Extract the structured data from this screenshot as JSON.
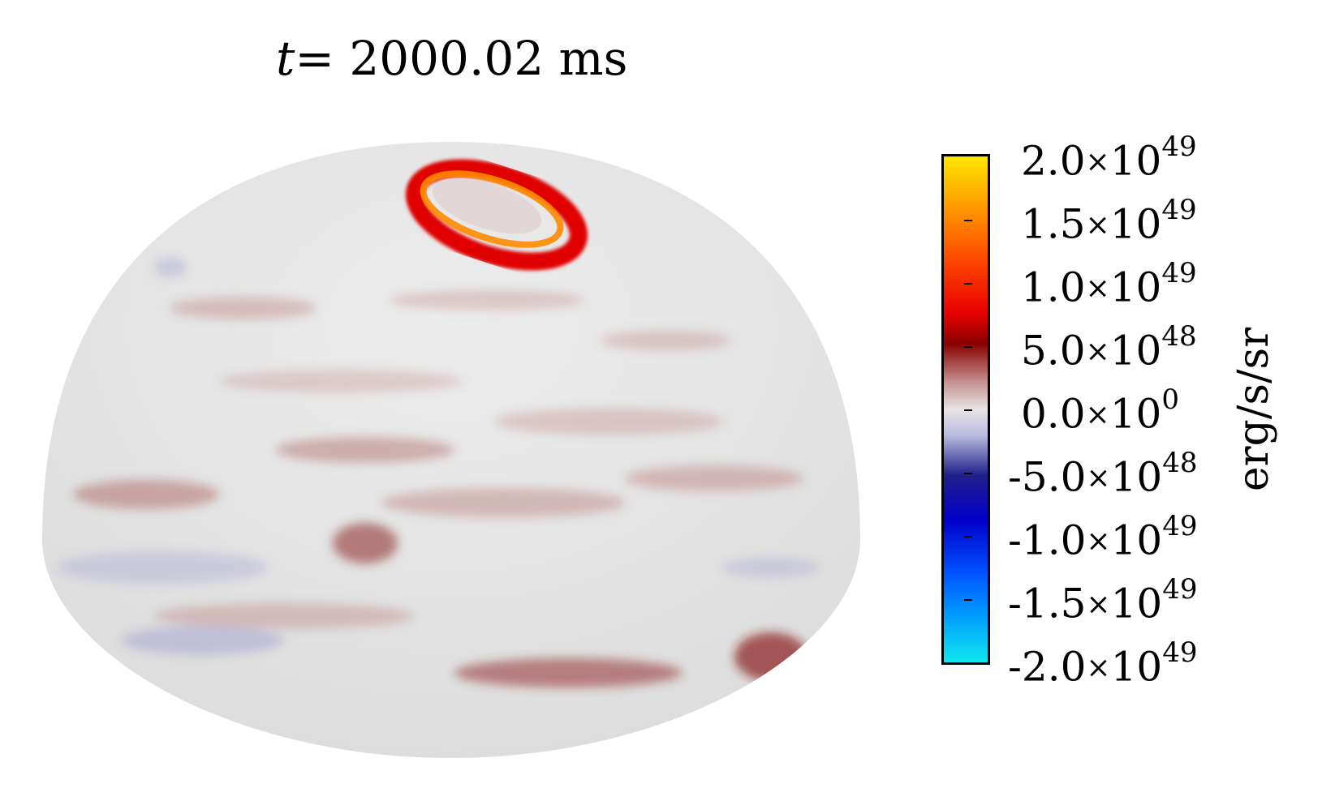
{
  "title": {
    "var": "t",
    "text": "= 2000.02 ms"
  },
  "colorbar": {
    "unit": "erg/s/sr",
    "labels": [
      {
        "mantissa": "2.0",
        "exp": "49"
      },
      {
        "mantissa": "1.5",
        "exp": "49"
      },
      {
        "mantissa": "1.0",
        "exp": "49"
      },
      {
        "mantissa": "5.0",
        "exp": "48"
      },
      {
        "mantissa": "0.0",
        "exp": "0"
      },
      {
        "mantissa": "-5.0",
        "exp": "48"
      },
      {
        "mantissa": "-1.0",
        "exp": "49"
      },
      {
        "mantissa": "-1.5",
        "exp": "49"
      },
      {
        "mantissa": "-2.0",
        "exp": "49"
      }
    ],
    "range": [
      -2e+49,
      2e+49
    ],
    "colors": [
      "#ffe600",
      "#ff4a00",
      "#8a0000",
      "#e8e4e4",
      "#0000cc",
      "#0fe8ee"
    ]
  }
}
